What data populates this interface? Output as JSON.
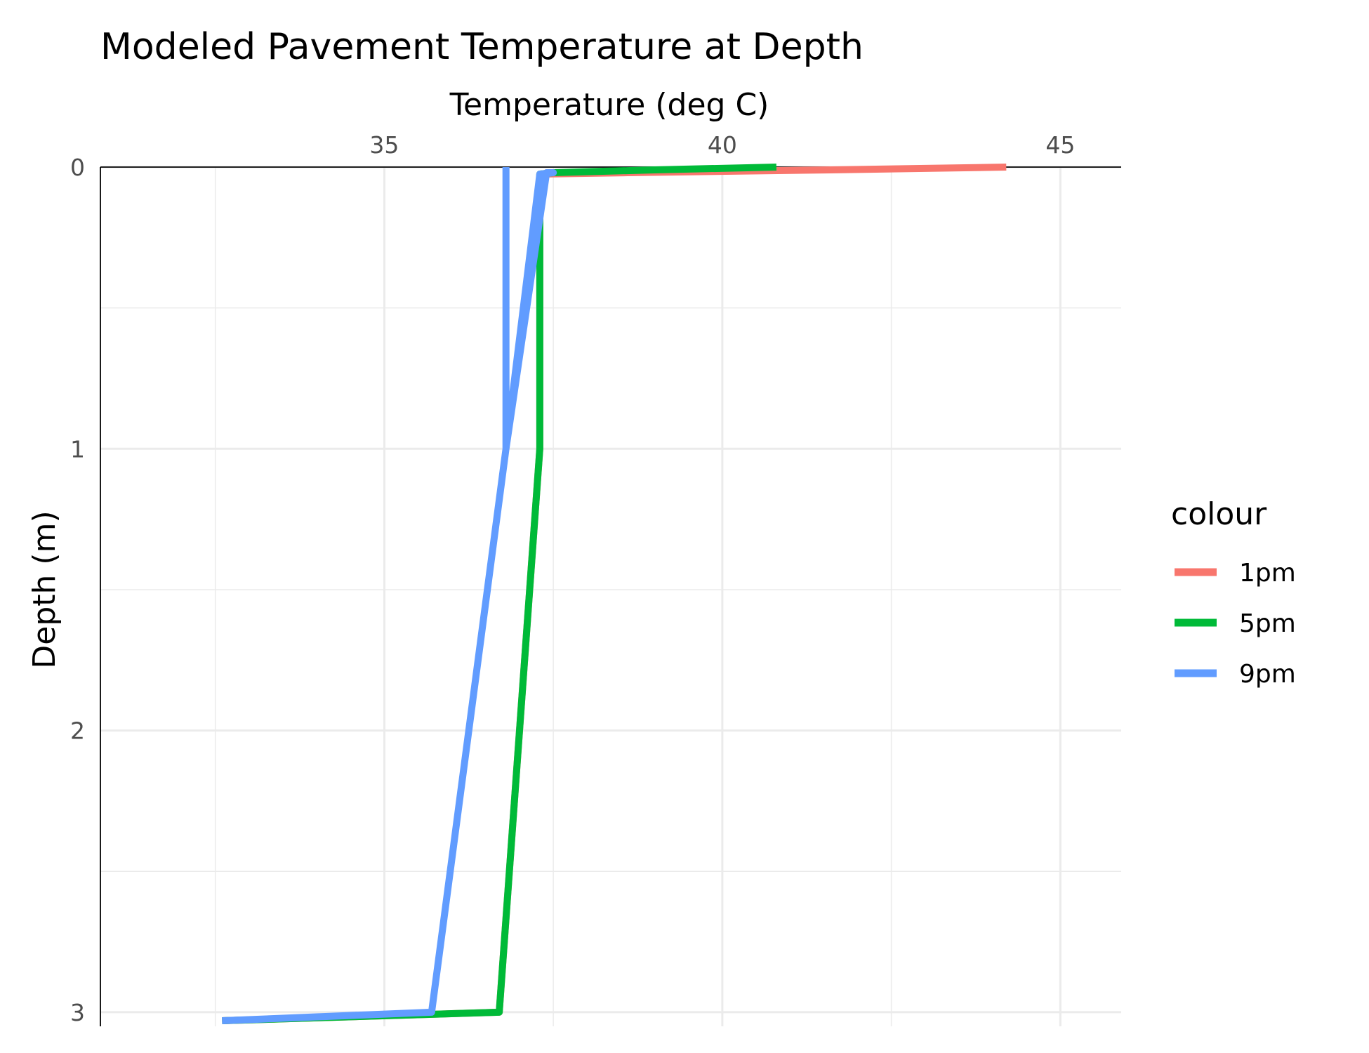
{
  "chart_data": {
    "type": "line",
    "title": "Modeled Pavement Temperature at Depth",
    "xlabel": "Temperature (deg C)",
    "ylabel": "Depth (m)",
    "x_axis_position": "top",
    "y_axis_reversed": true,
    "xlim": [
      30.8,
      45.9
    ],
    "ylim": [
      0,
      3.05
    ],
    "x_ticks": [
      35,
      40,
      45
    ],
    "y_ticks": [
      0,
      1,
      2,
      3
    ],
    "grid": true,
    "legend": {
      "title": "colour",
      "position": "right"
    },
    "series": [
      {
        "name": "1pm",
        "color": "#F8766D",
        "points": [
          [
            44.2,
            0.0
          ],
          [
            41.6,
            0.01
          ],
          [
            38.6,
            0.02
          ],
          [
            37.3,
            0.025
          ],
          [
            37.3,
            1.0
          ],
          [
            36.7,
            3.0
          ],
          [
            32.6,
            3.03
          ]
        ]
      },
      {
        "name": "5pm",
        "color": "#00BA38",
        "points": [
          [
            40.8,
            0.0
          ],
          [
            39.0,
            0.01
          ],
          [
            37.5,
            0.02
          ],
          [
            37.3,
            0.025
          ],
          [
            37.3,
            1.0
          ],
          [
            36.7,
            3.0
          ],
          [
            32.6,
            3.03
          ]
        ]
      },
      {
        "name": "9pm",
        "color": "#619CFF",
        "points": [
          [
            36.8,
            0.0
          ],
          [
            36.8,
            1.0
          ],
          [
            37.3,
            0.025
          ],
          [
            37.5,
            0.02
          ],
          [
            37.4,
            0.02
          ],
          [
            36.8,
            1.0
          ],
          [
            35.7,
            3.0
          ],
          [
            32.6,
            3.03
          ]
        ]
      }
    ]
  }
}
